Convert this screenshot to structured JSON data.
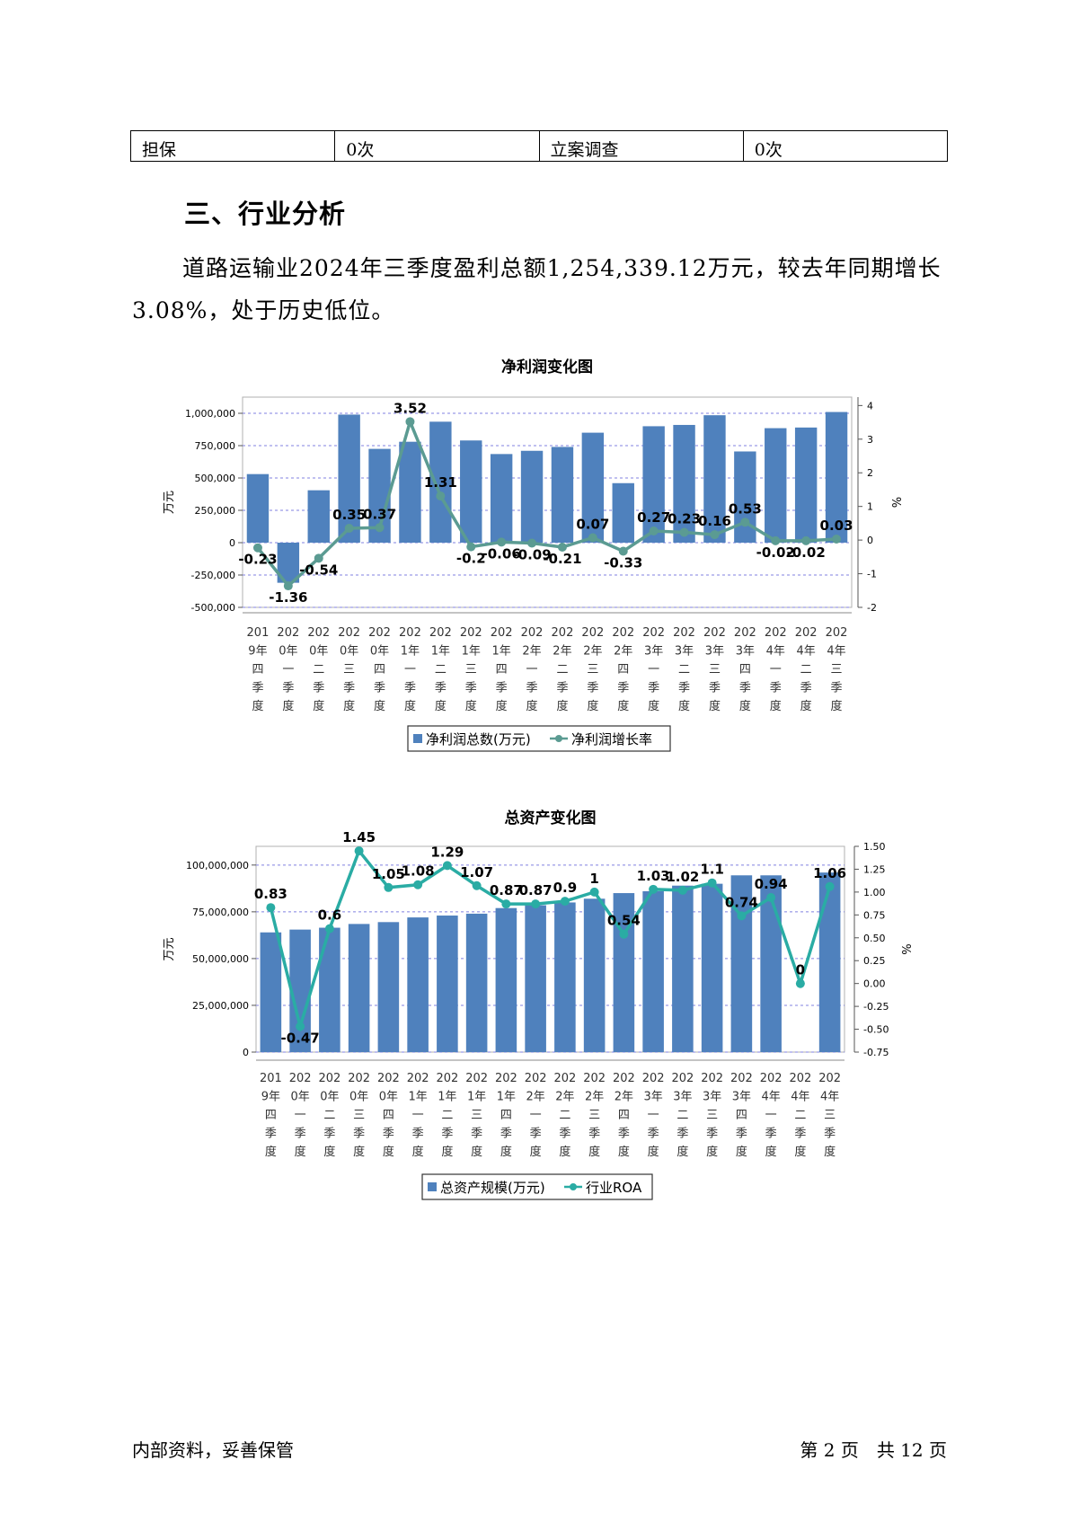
{
  "table": {
    "cells": [
      "担保",
      "0次",
      "立案调查",
      "0次"
    ]
  },
  "section_title": "三、行业分析",
  "paragraph": "道路运输业2024年三季度盈利总额1,254,339.12万元，较去年同期增长3.08%，处于历史低位。",
  "footer": {
    "left": "内部资料，妥善保管",
    "right": "第 2 页　共 12 页"
  },
  "chart_data": [
    {
      "type": "bar",
      "title": "净利润变化图",
      "ylabel": "万元",
      "y2label": "%",
      "categories": [
        "2019年四季度",
        "2020年一季度",
        "2020年二季度",
        "2020年三季度",
        "2020年四季度",
        "2021年一季度",
        "2021年二季度",
        "2021年三季度",
        "2021年四季度",
        "2022年一季度",
        "2022年二季度",
        "2022年三季度",
        "2022年四季度",
        "2023年一季度",
        "2023年二季度",
        "2023年三季度",
        "2023年四季度",
        "2024年一季度",
        "2024年二季度",
        "2024年三季度"
      ],
      "category_lines": [
        [
          "201",
          "9年",
          "四",
          "季",
          "度"
        ],
        [
          "202",
          "0年",
          "一",
          "季",
          "度"
        ],
        [
          "202",
          "0年",
          "二",
          "季",
          "度"
        ],
        [
          "202",
          "0年",
          "三",
          "季",
          "度"
        ],
        [
          "202",
          "0年",
          "四",
          "季",
          "度"
        ],
        [
          "202",
          "1年",
          "一",
          "季",
          "度"
        ],
        [
          "202",
          "1年",
          "二",
          "季",
          "度"
        ],
        [
          "202",
          "1年",
          "三",
          "季",
          "度"
        ],
        [
          "202",
          "1年",
          "四",
          "季",
          "度"
        ],
        [
          "202",
          "2年",
          "一",
          "季",
          "度"
        ],
        [
          "202",
          "2年",
          "二",
          "季",
          "度"
        ],
        [
          "202",
          "2年",
          "三",
          "季",
          "度"
        ],
        [
          "202",
          "2年",
          "四",
          "季",
          "度"
        ],
        [
          "202",
          "3年",
          "一",
          "季",
          "度"
        ],
        [
          "202",
          "3年",
          "二",
          "季",
          "度"
        ],
        [
          "202",
          "3年",
          "三",
          "季",
          "度"
        ],
        [
          "202",
          "3年",
          "四",
          "季",
          "度"
        ],
        [
          "202",
          "4年",
          "一",
          "季",
          "度"
        ],
        [
          "202",
          "4年",
          "二",
          "季",
          "度"
        ],
        [
          "202",
          "4年",
          "三",
          "季",
          "度"
        ]
      ],
      "ylim": [
        -500000,
        1125000
      ],
      "yticks": [
        -500000,
        -250000,
        0,
        250000,
        500000,
        750000,
        1000000
      ],
      "ytick_labels": [
        "-500,000",
        "-250,000",
        "0",
        "250,000",
        "500,000",
        "750,000",
        "1,000,000"
      ],
      "y2lim": [
        -2,
        4.25
      ],
      "y2ticks": [
        -2,
        -1,
        0,
        1,
        2,
        3,
        4
      ],
      "y2tick_labels": [
        "-2",
        "-1",
        "0",
        "1",
        "2",
        "3",
        "4"
      ],
      "series": [
        {
          "name": "净利润总数(万元)",
          "kind": "bar",
          "color": "#4f81bd",
          "values": [
            530000,
            -310000,
            405000,
            990000,
            725000,
            780000,
            935000,
            790000,
            685000,
            710000,
            740000,
            850000,
            460000,
            900000,
            910000,
            985000,
            705000,
            885000,
            890000,
            1010000
          ]
        },
        {
          "name": "净利润增长率",
          "kind": "line",
          "color": "#5b9b92",
          "values": [
            -0.23,
            -1.36,
            -0.54,
            0.35,
            0.37,
            3.52,
            1.31,
            -0.2,
            -0.06,
            -0.09,
            -0.21,
            0.07,
            -0.33,
            0.27,
            0.23,
            0.16,
            0.53,
            -0.02,
            -0.02,
            0.03
          ],
          "labels": [
            "-0.23",
            "-1.36",
            "-0.54",
            "0.35",
            "0.37",
            "3.52",
            "1.31",
            "-0.2",
            "-0.06",
            "-0.09",
            "-0.21",
            "0.07",
            "-0.33",
            "0.27",
            "0.23",
            "0.16",
            "0.53",
            "-0.02",
            "-0.02",
            "0.03"
          ]
        }
      ],
      "grid": true,
      "legend": "bottom"
    },
    {
      "type": "bar",
      "title": "总资产变化图",
      "ylabel": "万元",
      "y2label": "%",
      "categories": [
        "2019年四季度",
        "2020年一季度",
        "2020年二季度",
        "2020年三季度",
        "2020年四季度",
        "2021年一季度",
        "2021年二季度",
        "2021年三季度",
        "2021年四季度",
        "2022年一季度",
        "2022年二季度",
        "2022年三季度",
        "2022年四季度",
        "2023年一季度",
        "2023年二季度",
        "2023年三季度",
        "2023年四季度",
        "2024年一季度",
        "2024年二季度",
        "2024年三季度"
      ],
      "category_lines": [
        [
          "201",
          "9年",
          "四",
          "季",
          "度"
        ],
        [
          "202",
          "0年",
          "一",
          "季",
          "度"
        ],
        [
          "202",
          "0年",
          "二",
          "季",
          "度"
        ],
        [
          "202",
          "0年",
          "三",
          "季",
          "度"
        ],
        [
          "202",
          "0年",
          "四",
          "季",
          "度"
        ],
        [
          "202",
          "1年",
          "一",
          "季",
          "度"
        ],
        [
          "202",
          "1年",
          "二",
          "季",
          "度"
        ],
        [
          "202",
          "1年",
          "三",
          "季",
          "度"
        ],
        [
          "202",
          "1年",
          "四",
          "季",
          "度"
        ],
        [
          "202",
          "2年",
          "一",
          "季",
          "度"
        ],
        [
          "202",
          "2年",
          "二",
          "季",
          "度"
        ],
        [
          "202",
          "2年",
          "三",
          "季",
          "度"
        ],
        [
          "202",
          "2年",
          "四",
          "季",
          "度"
        ],
        [
          "202",
          "3年",
          "一",
          "季",
          "度"
        ],
        [
          "202",
          "3年",
          "二",
          "季",
          "度"
        ],
        [
          "202",
          "3年",
          "三",
          "季",
          "度"
        ],
        [
          "202",
          "3年",
          "四",
          "季",
          "度"
        ],
        [
          "202",
          "4年",
          "一",
          "季",
          "度"
        ],
        [
          "202",
          "4年",
          "二",
          "季",
          "度"
        ],
        [
          "202",
          "4年",
          "三",
          "季",
          "度"
        ]
      ],
      "ylim": [
        0,
        110000000
      ],
      "yticks": [
        0,
        25000000,
        50000000,
        75000000,
        100000000
      ],
      "ytick_labels": [
        "0",
        "25,000,000",
        "50,000,000",
        "75,000,000",
        "100,000,000"
      ],
      "y2lim": [
        -0.75,
        1.5
      ],
      "y2ticks": [
        -0.75,
        -0.5,
        -0.25,
        0,
        0.25,
        0.5,
        0.75,
        1,
        1.25,
        1.5
      ],
      "y2tick_labels": [
        "-0.75",
        "-0.50",
        "-0.25",
        "0.00",
        "0.25",
        "0.50",
        "0.75",
        "1.00",
        "1.25",
        "1.50"
      ],
      "series": [
        {
          "name": "总资产规模(万元)",
          "kind": "bar",
          "color": "#4f81bd",
          "values": [
            64000000,
            65500000,
            66500000,
            68500000,
            69500000,
            72000000,
            73000000,
            74000000,
            77000000,
            78500000,
            80000000,
            82000000,
            85000000,
            86000000,
            89000000,
            90000000,
            94500000,
            94500000,
            null,
            96000000
          ]
        },
        {
          "name": "行业ROA",
          "kind": "line",
          "color": "#2aaca4",
          "values": [
            0.83,
            -0.47,
            0.6,
            1.45,
            1.05,
            1.08,
            1.29,
            1.07,
            0.87,
            0.87,
            0.9,
            1,
            0.54,
            1.03,
            1.02,
            1.1,
            0.74,
            0.94,
            0,
            1.06
          ],
          "labels": [
            "0.83",
            "-0.47",
            "0.6",
            "1.45",
            "1.05",
            "1.08",
            "1.29",
            "1.07",
            "0.87",
            "0.87",
            "0.9",
            "1",
            "0.54",
            "1.03",
            "1.02",
            "1.1",
            "0.74",
            "0.94",
            "0",
            "1.06"
          ]
        }
      ],
      "grid": true,
      "legend": "bottom"
    }
  ]
}
